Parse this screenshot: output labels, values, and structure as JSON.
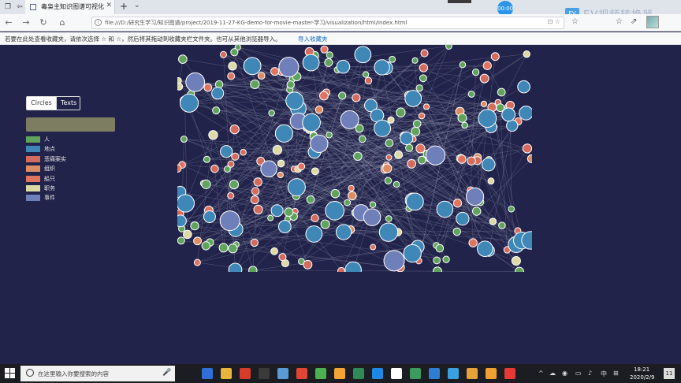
{
  "browser": {
    "tab_title": "毒枭主知识图谱可视化",
    "url": "file:///D:/研究生学习/知识图谱/project/2019-11-27-KG-demo-for-movie-master-学习/visualization/html/index.html",
    "bookmark_hint": "若要在此处查看收藏夹，请依次选择 ☆ 和 ☆，然后将其拖动到收藏夹栏文件夹。也可从其他浏览器导入。",
    "bookmark_import": "导入收藏夹",
    "recorder_time": "00:00",
    "overlay_label": "EV视频转换器"
  },
  "page": {
    "toggle": {
      "circles_label": "Circles",
      "texts_label": "Texts"
    },
    "search": {
      "value": ""
    },
    "legend": [
      {
        "label": "人",
        "color": "#5fa35d"
      },
      {
        "label": "地点",
        "color": "#3e87b7"
      },
      {
        "label": "悲痛案实",
        "color": "#d36b5e"
      },
      {
        "label": "组织",
        "color": "#dd8d63"
      },
      {
        "label": "船只",
        "color": "#e0745f"
      },
      {
        "label": "职务",
        "color": "#dcd9a5"
      },
      {
        "label": "事件",
        "color": "#6f7fb9"
      }
    ]
  },
  "taskbar": {
    "search_placeholder": "在这里输入你要搜索的内容",
    "time": "18:21",
    "date": "2020/2/9",
    "lang": "中",
    "notification_count": "11"
  }
}
